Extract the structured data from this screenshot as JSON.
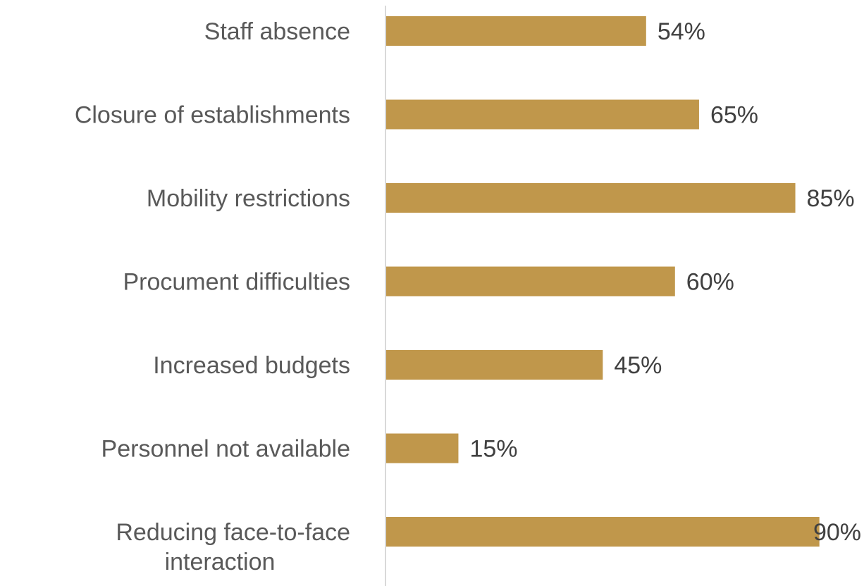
{
  "chart_data": {
    "type": "bar",
    "orientation": "horizontal",
    "categories": [
      [
        "Staff absence"
      ],
      [
        "Closure of establishments"
      ],
      [
        "Mobility restrictions"
      ],
      [
        "Procument difficulties"
      ],
      [
        "Increased budgets"
      ],
      [
        "Personnel not available"
      ],
      [
        "Reducing face-to-face",
        "interaction"
      ]
    ],
    "values": [
      54,
      65,
      85,
      60,
      45,
      15,
      90
    ],
    "value_labels": [
      "54%",
      "65%",
      "85%",
      "60%",
      "45%",
      "15%",
      "90%"
    ],
    "unit": "%",
    "xlim": [
      0,
      100
    ],
    "grid": false,
    "legend": "none"
  },
  "colors": {
    "bar": "#C0974B",
    "axis": "#D9D9D9",
    "category_text": "#595959",
    "value_text": "#404040"
  }
}
